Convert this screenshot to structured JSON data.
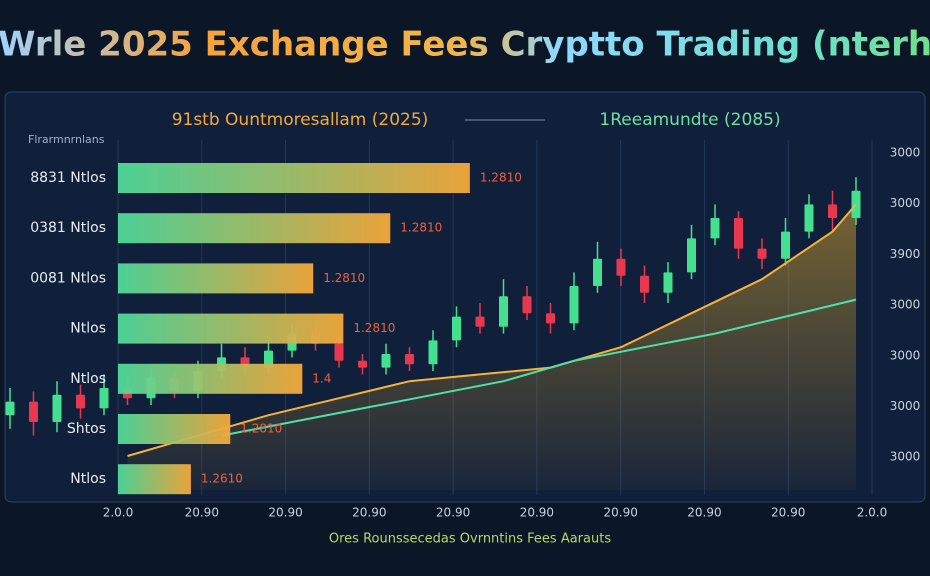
{
  "chart_data": {
    "type": "bar",
    "title": "Wrle 2025 Exchange Fees Cryptto Trading (nterh",
    "subtitle_left": "91stb Ountmoresallam (2025)",
    "subtitle_right": "1Reeamundte (2085)",
    "axis_note": "Flrarmnrnlans",
    "x_label": "Ores Rounssecedas Ovrnntins Fees Aarauts",
    "categories": [
      "8831 Ntlos",
      "0381 Ntlos",
      "0081 Ntlos",
      "Ntlos",
      "Ntlos",
      "Shtos",
      "Ntlos"
    ],
    "values": [
      4.2,
      3.25,
      2.33,
      2.69,
      2.2,
      1.34,
      0.87
    ],
    "fee_labels": [
      "1.2810",
      "1.2810",
      "1.2810",
      "1.2810",
      "1.4",
      "1.2810",
      "1.2610"
    ],
    "bar_colors": [
      "#4fd99a",
      "#f5a93a"
    ],
    "xlim": [
      0,
      9
    ],
    "xticks": [
      {
        "value": 0,
        "label": "2.0.0"
      },
      {
        "value": 1,
        "label": "20.90"
      },
      {
        "value": 2,
        "label": "20.90"
      },
      {
        "value": 3,
        "label": "20.90"
      },
      {
        "value": 4,
        "label": "20.90"
      },
      {
        "value": 5,
        "label": "20.90"
      },
      {
        "value": 6,
        "label": "20.90"
      },
      {
        "value": 7,
        "label": "20.90"
      },
      {
        "value": 8,
        "label": "20.90"
      },
      {
        "value": 9,
        "label": "2.0.0"
      }
    ],
    "y2lim": [
      0,
      100
    ],
    "y2_axis_labels": [
      "3000",
      "3000",
      "3900",
      "3000",
      "3000",
      "3000",
      "3000"
    ],
    "candles": {
      "up_color": "#45e08f",
      "down_color": "#e8384f",
      "open": [
        22,
        26,
        20,
        28,
        24,
        30,
        27,
        33,
        29,
        35,
        39,
        36,
        41,
        46,
        43,
        38,
        36,
        40,
        37,
        44,
        51,
        48,
        57,
        52,
        49,
        60,
        68,
        63,
        58,
        64,
        74,
        80,
        71,
        68,
        76,
        84,
        80
      ],
      "close": [
        26,
        20,
        28,
        24,
        30,
        27,
        33,
        29,
        35,
        39,
        36,
        41,
        46,
        43,
        38,
        36,
        40,
        37,
        44,
        51,
        48,
        57,
        52,
        49,
        60,
        68,
        63,
        58,
        64,
        74,
        80,
        71,
        68,
        76,
        84,
        80,
        88
      ],
      "high": [
        30,
        29,
        32,
        31,
        34,
        33,
        36,
        35,
        38,
        43,
        42,
        44,
        49,
        48,
        45,
        40,
        43,
        42,
        47,
        54,
        55,
        62,
        60,
        55,
        64,
        73,
        71,
        66,
        67,
        78,
        84,
        82,
        74,
        80,
        87,
        88,
        92
      ],
      "low": [
        18,
        16,
        17,
        21,
        22,
        25,
        25,
        27,
        27,
        33,
        34,
        34,
        39,
        41,
        36,
        34,
        34,
        35,
        35,
        42,
        46,
        46,
        50,
        46,
        47,
        58,
        60,
        55,
        55,
        62,
        72,
        68,
        65,
        66,
        74,
        76,
        78
      ]
    },
    "series": [
      {
        "color": "#f5b23c",
        "axis": "y2",
        "x": [
          5,
          8,
          11,
          14,
          17,
          20,
          23,
          26,
          29,
          32,
          35,
          36
        ],
        "values": [
          10,
          16,
          22,
          27,
          32,
          34,
          36,
          42,
          52,
          62,
          76,
          84
        ]
      },
      {
        "color": "#4fe0a8",
        "axis": "y2",
        "x": [
          9,
          12,
          15,
          18,
          21,
          24,
          27,
          30,
          33,
          36
        ],
        "values": [
          16,
          20,
          24,
          28,
          32,
          38,
          42,
          46,
          51,
          56
        ]
      }
    ]
  }
}
